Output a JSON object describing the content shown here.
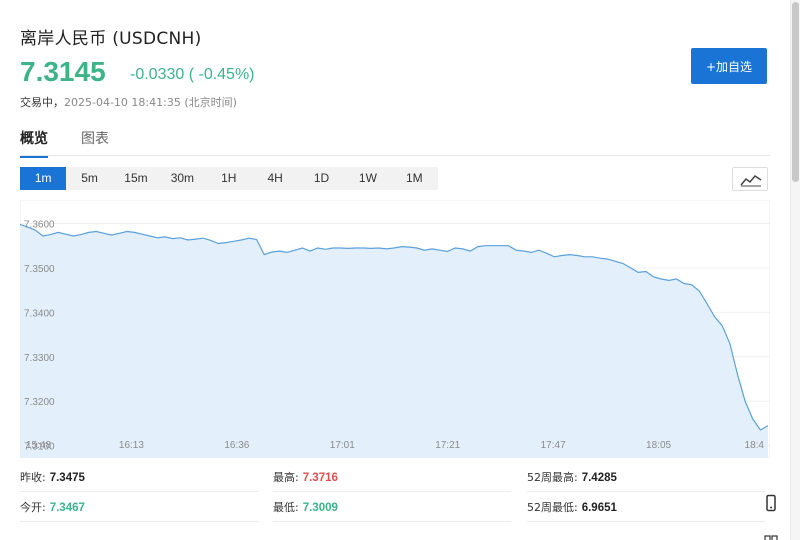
{
  "header": {
    "title": "离岸人民币  (USDCNH)",
    "price": "7.3145",
    "change": "-0.0330 ( -0.45%)",
    "status": "交易中，",
    "datetime": "2025-04-10 18:41:35 (北京时间)",
    "add_watchlist_label": "+加自选"
  },
  "tabs": [
    {
      "label": "概览",
      "active": true
    },
    {
      "label": "图表",
      "active": false
    }
  ],
  "periods": [
    "1m",
    "5m",
    "15m",
    "30m",
    "1H",
    "4H",
    "1D",
    "1W",
    "1M"
  ],
  "active_period": "1m",
  "chart_data": {
    "type": "area",
    "x_tick_labels": [
      "15:48",
      "16:13",
      "16:36",
      "17:01",
      "17:21",
      "17:47",
      "18:05",
      "18:4"
    ],
    "y_ticks": [
      7.36,
      7.35,
      7.34,
      7.33,
      7.32,
      7.31
    ],
    "y_tick_labels": [
      "7.3600",
      "7.3500",
      "7.3400",
      "7.3300",
      "7.3200",
      "7.3100"
    ],
    "ylim": [
      7.309,
      7.3635
    ],
    "line_color": "#5aa0dc",
    "fill_color": "#e3f0fb",
    "values": [
      7.3598,
      7.3592,
      7.3585,
      7.3572,
      7.3575,
      7.358,
      7.3576,
      7.3572,
      7.3575,
      7.358,
      7.3582,
      7.3578,
      7.3574,
      7.3578,
      7.3582,
      7.358,
      7.3576,
      7.3572,
      7.3568,
      7.357,
      7.3566,
      7.3568,
      7.3563,
      7.3565,
      7.3567,
      7.3562,
      7.3555,
      7.3557,
      7.356,
      7.3563,
      7.3567,
      7.3564,
      7.353,
      7.3536,
      7.3538,
      7.3535,
      7.354,
      7.3545,
      7.3538,
      7.3545,
      7.3542,
      7.3545,
      7.3545,
      7.3544,
      7.3545,
      7.3545,
      7.3544,
      7.3545,
      7.3543,
      7.3545,
      7.3548,
      7.3547,
      7.3545,
      7.354,
      7.3543,
      7.354,
      7.3537,
      7.3545,
      7.3543,
      7.3538,
      7.3548,
      7.355,
      7.355,
      7.355,
      7.355,
      7.354,
      7.3538,
      7.3535,
      7.354,
      7.3533,
      7.3525,
      7.3528,
      7.353,
      7.3528,
      7.3525,
      7.3525,
      7.3522,
      7.352,
      7.3515,
      7.351,
      7.35,
      7.349,
      7.3492,
      7.348,
      7.3475,
      7.3472,
      7.3475,
      7.3465,
      7.3462,
      7.3448,
      7.342,
      7.339,
      7.337,
      7.333,
      7.326,
      7.32,
      7.316,
      7.3135,
      7.3145
    ]
  },
  "stats": {
    "prev_close_label": "昨收:",
    "prev_close": "7.3475",
    "high_label": "最高:",
    "high": "7.3716",
    "high52_label": "52周最高:",
    "high52": "7.4285",
    "open_label": "今开:",
    "open": "7.3467",
    "low_label": "最低:",
    "low": "7.3009",
    "low52_label": "52周最低:",
    "low52": "6.9651"
  },
  "colors": {
    "accent": "#1a74d6",
    "down": "#3cb48a",
    "up": "#e04e4e"
  },
  "icons": [
    "trend-line-icon",
    "mobile-phone-icon",
    "qr-code-icon"
  ]
}
